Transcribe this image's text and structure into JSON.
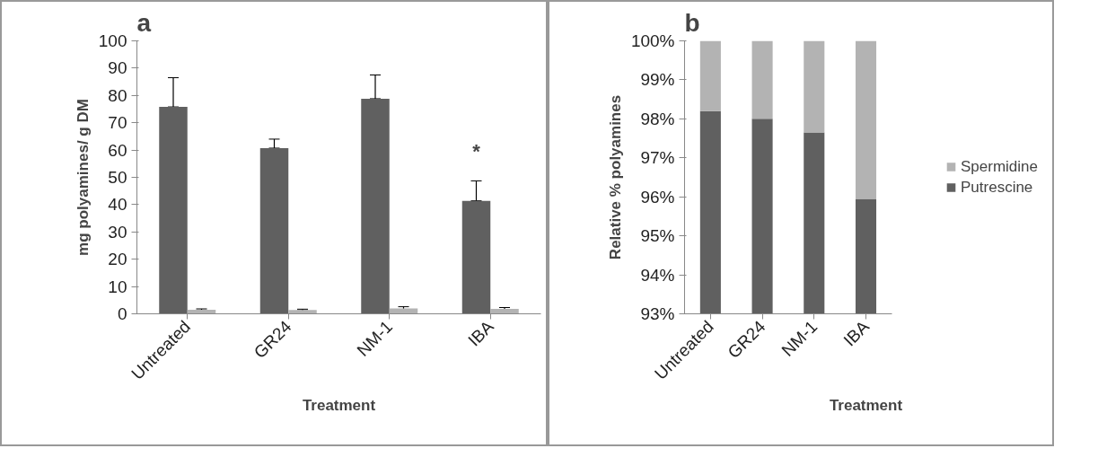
{
  "chart_data": [
    {
      "type": "bar",
      "title": "a",
      "xlabel": "Treatment",
      "ylabel": "mg polyamines/ g DM",
      "categories": [
        "Untreated",
        "GR24",
        "NM-1",
        "IBA"
      ],
      "series": [
        {
          "color": "#606060",
          "values": [
            75.8,
            60.7,
            78.8,
            41.4
          ],
          "errors": [
            [
              75.8,
              86.5
            ],
            [
              60.7,
              64.0
            ],
            [
              78.8,
              87.5
            ],
            [
              41.4,
              48.7
            ]
          ]
        },
        {
          "color": "#b3b3b3",
          "values": [
            1.5,
            1.4,
            2.0,
            1.8
          ],
          "errors": [
            [
              1.2,
              1.8
            ],
            [
              1.1,
              1.7
            ],
            [
              1.4,
              2.6
            ],
            [
              1.3,
              2.3
            ]
          ]
        }
      ],
      "ylim": [
        0,
        100
      ],
      "yticks": [
        0,
        10,
        20,
        30,
        40,
        50,
        60,
        70,
        80,
        90,
        100
      ],
      "grid": false,
      "legend": false,
      "annotations": [
        "*"
      ]
    },
    {
      "type": "bar",
      "stacked": true,
      "title": "b",
      "xlabel": "Treatment",
      "ylabel": "Relative % polyamines",
      "categories": [
        "Untreated",
        "GR24",
        "NM-1",
        "IBA"
      ],
      "series": [
        {
          "name": "Putrescine",
          "color": "#606060",
          "values": [
            98.2,
            98.0,
            97.65,
            95.95
          ]
        },
        {
          "name": "Spermidine",
          "color": "#b3b3b3",
          "values": [
            1.8,
            2.0,
            2.35,
            4.05
          ],
          "base": [
            98.2,
            98.0,
            97.65,
            95.95
          ]
        }
      ],
      "ylim": [
        93,
        100
      ],
      "yticks": [
        {
          "value": 93,
          "label": "93%"
        },
        {
          "value": 94,
          "label": "94%"
        },
        {
          "value": 95,
          "label": "95%"
        },
        {
          "value": 96,
          "label": "96%"
        },
        {
          "value": 97,
          "label": "97%"
        },
        {
          "value": 98,
          "label": "98%"
        },
        {
          "value": 99,
          "label": "99%"
        },
        {
          "value": 100,
          "label": "100%"
        }
      ],
      "grid": false,
      "legend": "right"
    }
  ]
}
